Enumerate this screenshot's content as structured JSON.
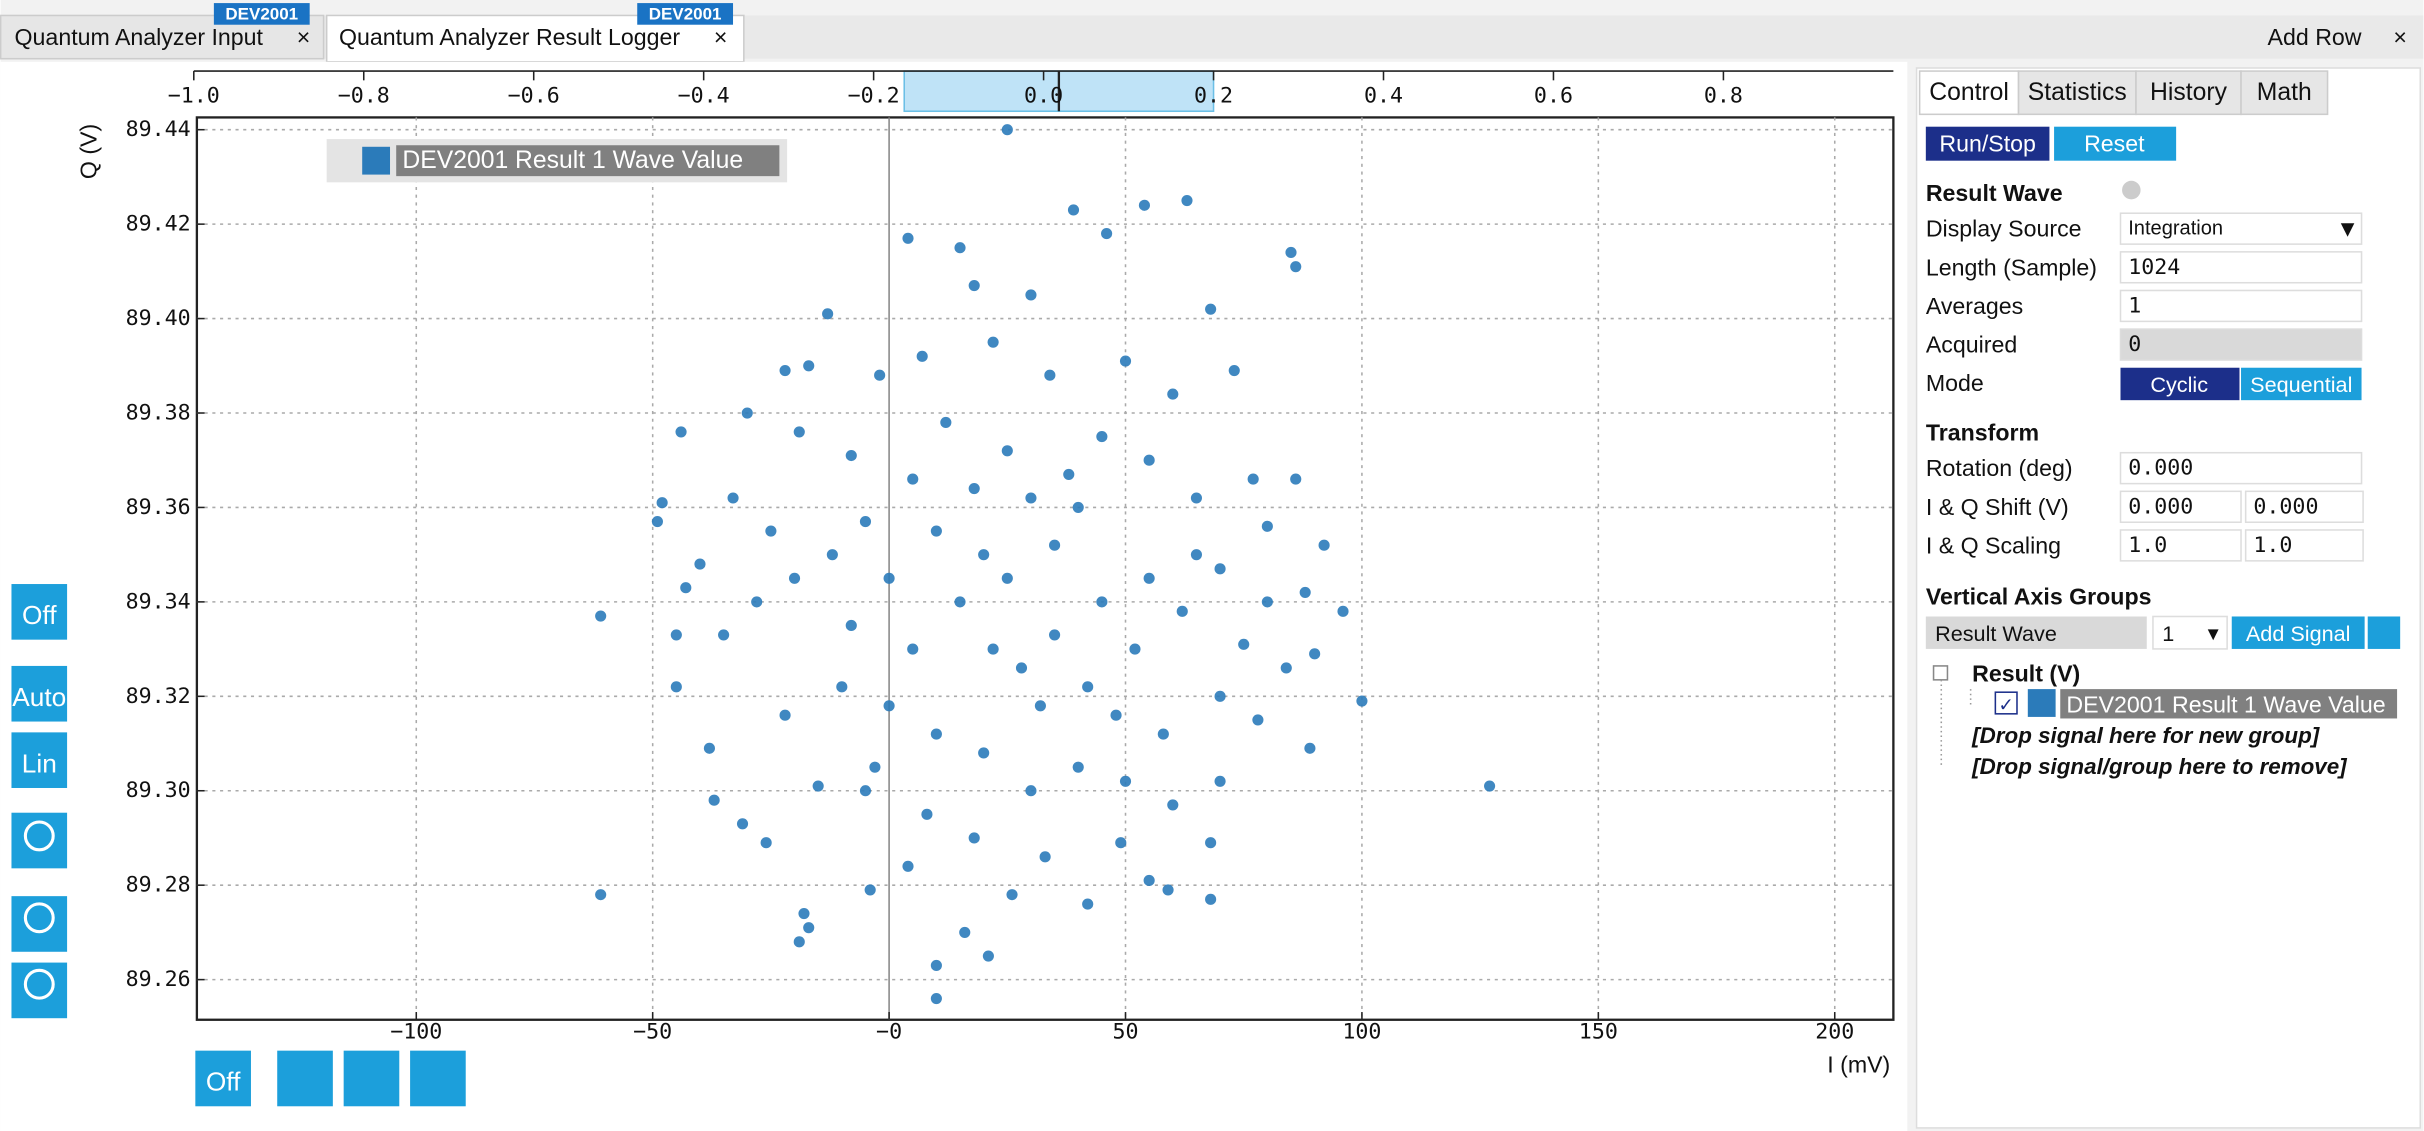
{
  "tabs": [
    {
      "title": "Quantum Analyzer Input",
      "badge": "DEV2001"
    },
    {
      "title": "Quantum Analyzer Result Logger",
      "badge": "DEV2001"
    }
  ],
  "add_row": "Add Row",
  "chart_data": {
    "type": "scatter",
    "x_label": "I (mV)",
    "y_label": "Q (V)",
    "grid": true,
    "xlim": [
      -146.4,
      212.4
    ],
    "xticks": [
      {
        "value": -100,
        "label": "−100"
      },
      {
        "value": -50,
        "label": "−50"
      },
      {
        "value": 0,
        "label": "−0"
      },
      50,
      100,
      150,
      200
    ],
    "ylim": [
      89.2515,
      89.4426
    ],
    "yticks": [
      89.26,
      89.28,
      {
        "value": 89.3,
        "label": "89.30"
      },
      89.32,
      89.34,
      89.36,
      89.38,
      {
        "value": 89.4,
        "label": "89.40"
      },
      89.42,
      89.44
    ],
    "x2lim": [
      -1,
      1
    ],
    "x2ticks": [
      {
        "value": -1,
        "label": "−1.0"
      },
      {
        "value": -0.8,
        "label": "−0.8"
      },
      {
        "value": -0.6,
        "label": "−0.6"
      },
      {
        "value": -0.4,
        "label": "−0.4"
      },
      {
        "value": -0.2,
        "label": "−0.2"
      },
      {
        "value": 0,
        "label": "0.0"
      },
      0.2,
      0.4,
      0.6,
      0.8
    ],
    "x2_window": [
      -0.164,
      0.2
    ],
    "series": [
      {
        "name": "DEV2001 Result 1 Wave Value",
        "color": "#2b7bba",
        "x": [
          -61,
          -61,
          127,
          100,
          25,
          85,
          86,
          10,
          -44,
          -48,
          -49,
          -45,
          -45,
          -13,
          4,
          15,
          39,
          46,
          54,
          63,
          68,
          30,
          18,
          -22,
          -17,
          -30,
          -33,
          -19,
          -8,
          -2,
          7,
          22,
          34,
          50,
          60,
          73,
          77,
          86,
          80,
          92,
          88,
          96,
          90,
          84,
          89,
          75,
          70,
          65,
          55,
          45,
          38,
          25,
          12,
          5,
          -5,
          -12,
          -20,
          -28,
          -35,
          -38,
          -37,
          -31,
          -26,
          -18,
          -19,
          -17,
          -4,
          4,
          10,
          16,
          21,
          26,
          33,
          42,
          49,
          55,
          59,
          68,
          68,
          60,
          50,
          40,
          30,
          20,
          10,
          0,
          -10,
          -22,
          -15,
          -3,
          8,
          18,
          28,
          35,
          45,
          55,
          62,
          70,
          78,
          15,
          20,
          25,
          35,
          40,
          10,
          0,
          -8,
          5,
          22,
          32,
          42,
          52,
          58,
          48,
          65,
          30,
          18,
          -25,
          -40,
          -43,
          -5,
          70,
          80
        ],
        "values": [
          89.337,
          89.278,
          89.301,
          89.319,
          89.44,
          89.414,
          89.411,
          89.256,
          89.376,
          89.361,
          89.357,
          89.333,
          89.322,
          89.401,
          89.417,
          89.415,
          89.423,
          89.418,
          89.424,
          89.425,
          89.402,
          89.405,
          89.407,
          89.389,
          89.39,
          89.38,
          89.362,
          89.376,
          89.371,
          89.388,
          89.392,
          89.395,
          89.388,
          89.391,
          89.384,
          89.389,
          89.366,
          89.366,
          89.356,
          89.352,
          89.342,
          89.338,
          89.329,
          89.326,
          89.309,
          89.331,
          89.347,
          89.362,
          89.37,
          89.375,
          89.367,
          89.372,
          89.378,
          89.366,
          89.357,
          89.35,
          89.345,
          89.34,
          89.333,
          89.309,
          89.298,
          89.293,
          89.289,
          89.274,
          89.268,
          89.271,
          89.279,
          89.284,
          89.263,
          89.27,
          89.265,
          89.278,
          89.286,
          89.276,
          89.289,
          89.281,
          89.279,
          89.277,
          89.289,
          89.297,
          89.302,
          89.305,
          89.3,
          89.308,
          89.312,
          89.318,
          89.322,
          89.316,
          89.301,
          89.305,
          89.295,
          89.29,
          89.326,
          89.333,
          89.34,
          89.345,
          89.338,
          89.32,
          89.315,
          89.34,
          89.35,
          89.345,
          89.352,
          89.36,
          89.355,
          89.345,
          89.335,
          89.33,
          89.33,
          89.318,
          89.322,
          89.33,
          89.312,
          89.316,
          89.35,
          89.362,
          89.364,
          89.355,
          89.348,
          89.343,
          89.3,
          89.302,
          89.34
        ]
      }
    ]
  },
  "toolbar": {
    "grid": "Off",
    "auto": "Auto",
    "scale": "Lin",
    "bottom_grid": "Off"
  },
  "panel": {
    "tabs": [
      "Control",
      "Statistics",
      "History",
      "Math"
    ],
    "run": "Run/Stop",
    "reset": "Reset",
    "result_wave": {
      "heading": "Result Wave",
      "rows": [
        [
          "Display Source",
          "Integration"
        ],
        [
          "Length (Sample)",
          "1024"
        ],
        [
          "Averages",
          "1"
        ],
        [
          "Acquired",
          "0"
        ]
      ],
      "mode_label": "Mode",
      "modes": [
        "Cyclic",
        "Sequential"
      ]
    },
    "transform": {
      "heading": "Transform",
      "rows": [
        [
          "Rotation (deg)",
          "0.000"
        ],
        [
          "I & Q Shift (V)",
          "0.000",
          "0.000"
        ],
        [
          "I & Q Scaling",
          "1.0",
          "1.0"
        ]
      ]
    },
    "axis_groups": {
      "heading": "Vertical Axis Groups",
      "select": "Result Wave",
      "number": "1",
      "add": "Add Signal",
      "group": "Result (V)",
      "drop_new": "[Drop signal here for new group]",
      "drop_remove": "[Drop signal/group here to remove]"
    }
  }
}
